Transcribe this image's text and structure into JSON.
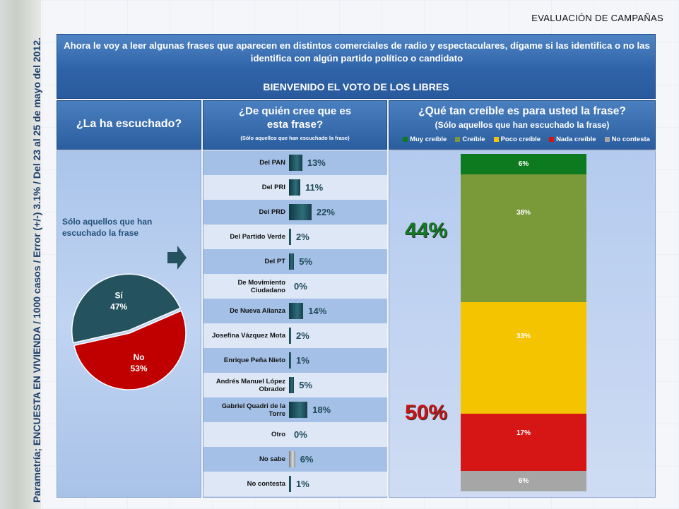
{
  "header": {
    "section_title": "EVALUACIÓN DE CAMPAÑAS",
    "question": "Ahora le voy a leer algunas frases que aparecen en distintos comerciales de radio y espectaculares, dígame si las identifica o no las identifica con algún partido político o candidato",
    "campaign": "BIENVENIDO EL VOTO DE LOS LIBRES"
  },
  "side_note": "Parametría; ENCUESTA EN VIVIENDA / 1000 casos / Error (+/-) 3.1% / Del 23 al 25 de mayo del 2012.",
  "columns": {
    "col1_title": "¿La ha escuchado?",
    "col2_title_line1": "¿De quién cree que es",
    "col2_title_line2": "esta frase?",
    "col2_subtitle": "(Sólo aquellos que han escuchado la frase)",
    "col3_title": "¿Qué tan creíble es para usted la frase?",
    "col3_subtitle": "(Sólo aquellos que han escuchado la frase)"
  },
  "pie_note": "Sólo aquellos que han escuchado la frase",
  "chart_data": [
    {
      "type": "pie",
      "title": "¿La ha escuchado?",
      "categories": [
        "Sí",
        "No"
      ],
      "values": [
        47,
        53
      ],
      "labels": [
        "47%",
        "53%"
      ],
      "colors": [
        "#24535f",
        "#c00000"
      ]
    },
    {
      "type": "bar",
      "title": "¿De quién cree que es esta frase?",
      "categories": [
        "Del PAN",
        "Del PRI",
        "Del PRD",
        "Del Partido Verde",
        "Del PT",
        "De Movimiento Ciudadano",
        "De Nueva Alianza",
        "Josefina Vázquez Mota",
        "Enrique Peña Nieto",
        "Andrés Manuel López Obrador",
        "Gabriel Quadri de la Torre",
        "Otro",
        "No sabe",
        "No contesta"
      ],
      "values": [
        13,
        11,
        22,
        2,
        5,
        0,
        14,
        2,
        1,
        5,
        18,
        0,
        6,
        1
      ],
      "labels": [
        "13%",
        "11%",
        "22%",
        "2%",
        "5%",
        "0%",
        "14%",
        "2%",
        "1%",
        "5%",
        "18%",
        "0%",
        "6%",
        "1%"
      ]
    },
    {
      "type": "bar",
      "title": "¿Qué tan creíble es para usted la frase?",
      "stacked": true,
      "series": [
        {
          "name": "Muy creíble",
          "values": [
            6
          ],
          "label": "6%",
          "color": "#0d7a1f"
        },
        {
          "name": "Creíble",
          "values": [
            38
          ],
          "label": "38%",
          "color": "#7a9a3a"
        },
        {
          "name": "Poco creíble",
          "values": [
            33
          ],
          "label": "33%",
          "color": "#f5c400"
        },
        {
          "name": "Nada creíble",
          "values": [
            17
          ],
          "label": "17%",
          "color": "#d61515"
        },
        {
          "name": "No contesta",
          "values": [
            6
          ],
          "label": "6%",
          "color": "#a6a6a6"
        }
      ],
      "summary": {
        "credible_total": "44%",
        "not_credible_total": "50%"
      }
    }
  ]
}
